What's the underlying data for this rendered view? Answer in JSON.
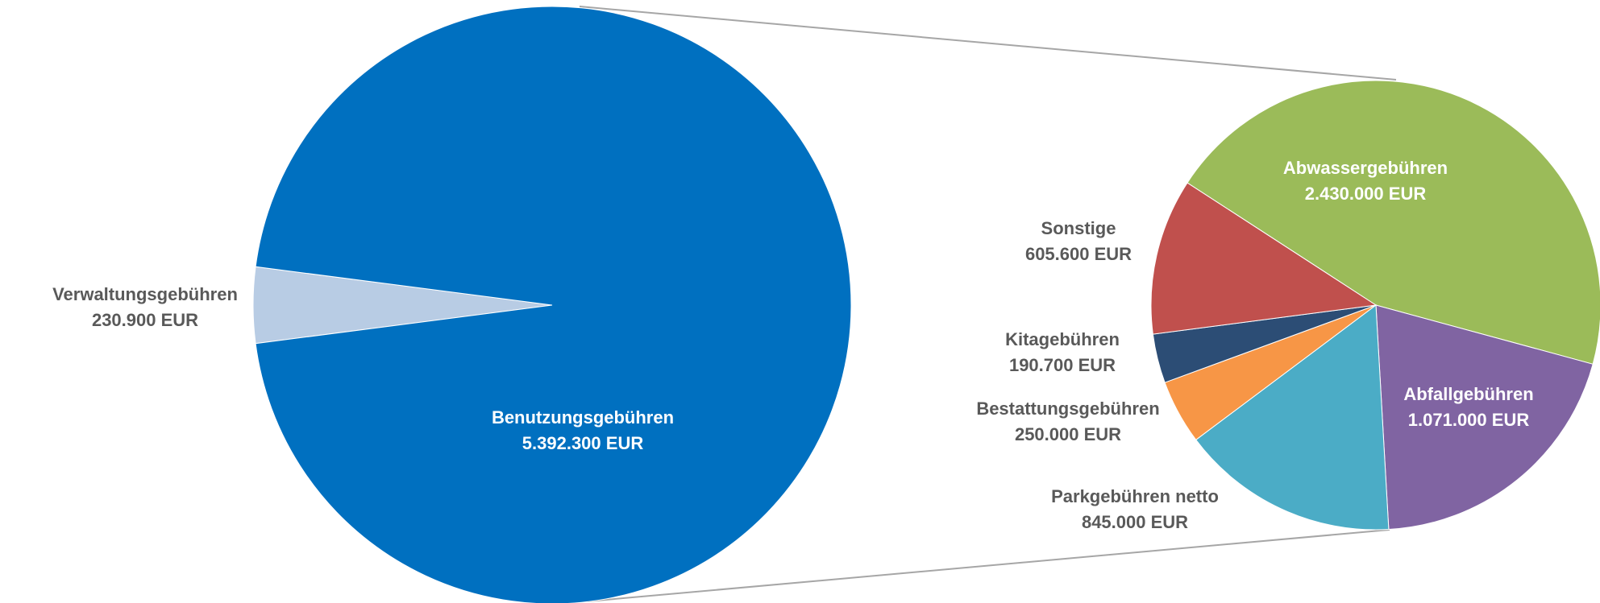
{
  "chart_data": [
    {
      "type": "pie",
      "categories": [
        "Verwaltungsgebühren",
        "Benutzungsgebühren"
      ],
      "values": [
        230900,
        5392300
      ],
      "value_labels": [
        "230.900 EUR",
        "5.392.300 EUR"
      ],
      "colors": [
        "#b8cce4",
        "#0070c0"
      ]
    },
    {
      "type": "pie",
      "categories": [
        "Abwassergebühren",
        "Abfallgebühren",
        "Parkgebühren netto",
        "Bestattungsgebühren",
        "Kitagebühren",
        "Sonstige"
      ],
      "values": [
        2430000,
        1071000,
        845000,
        250000,
        190700,
        605600
      ],
      "value_labels": [
        "2.430.000 EUR",
        "1.071.000 EUR",
        "845.000 EUR",
        "250.000 EUR",
        "190.700 EUR",
        "605.600 EUR"
      ],
      "colors": [
        "#9bbb59",
        "#8064a2",
        "#4bacc6",
        "#f79646",
        "#2c4d75",
        "#c0504d"
      ]
    }
  ]
}
